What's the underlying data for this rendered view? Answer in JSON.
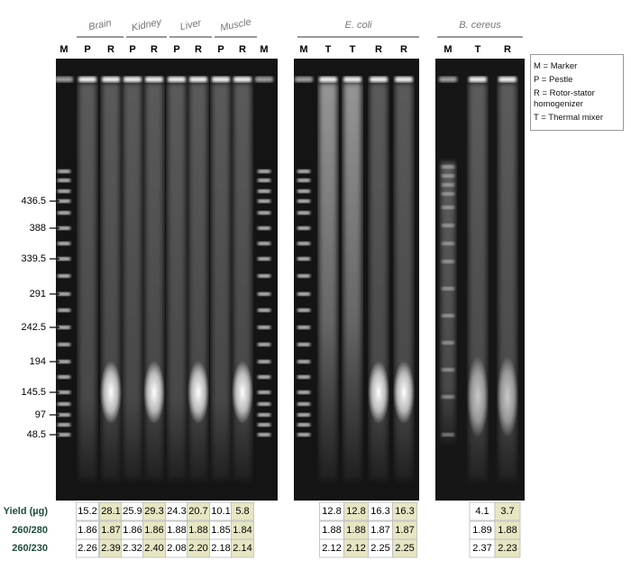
{
  "groups": [
    {
      "label": "Brain"
    },
    {
      "label": "Kidney"
    },
    {
      "label": "Liver"
    },
    {
      "label": "Muscle"
    },
    {
      "label": "E. coli"
    },
    {
      "label": "B. cereus"
    }
  ],
  "lanes": [
    "M",
    "P",
    "R",
    "P",
    "R",
    "P",
    "R",
    "P",
    "R",
    "M",
    "M",
    "T",
    "T",
    "R",
    "R",
    "M",
    "T",
    "R"
  ],
  "size_markers": [
    "436.5",
    "388",
    "339.5",
    "291",
    "242.5",
    "194",
    "145.5",
    "97",
    "48.5"
  ],
  "legend": [
    "M = Marker",
    "P = Pestle",
    "R = Rotor-stator homogenizer",
    "T = Thermal mixer"
  ],
  "table": {
    "rows": [
      {
        "label": "Yield (µg)",
        "values": [
          "15.2",
          "28.1",
          "25.9",
          "29.3",
          "24.3",
          "20.7",
          "10.1",
          "5.8",
          "12.8",
          "12.8",
          "16.3",
          "16.3",
          "4.1",
          "3.7"
        ]
      },
      {
        "label": "260/280",
        "values": [
          "1.86",
          "1.87",
          "1.86",
          "1.86",
          "1.88",
          "1.88",
          "1.85",
          "1.84",
          "1.88",
          "1.88",
          "1.87",
          "1.87",
          "1.89",
          "1.88"
        ]
      },
      {
        "label": "260/230",
        "values": [
          "2.26",
          "2.39",
          "2.32",
          "2.40",
          "2.08",
          "2.20",
          "2.18",
          "2.14",
          "2.12",
          "2.12",
          "2.25",
          "2.25",
          "2.37",
          "2.23"
        ]
      }
    ]
  }
}
